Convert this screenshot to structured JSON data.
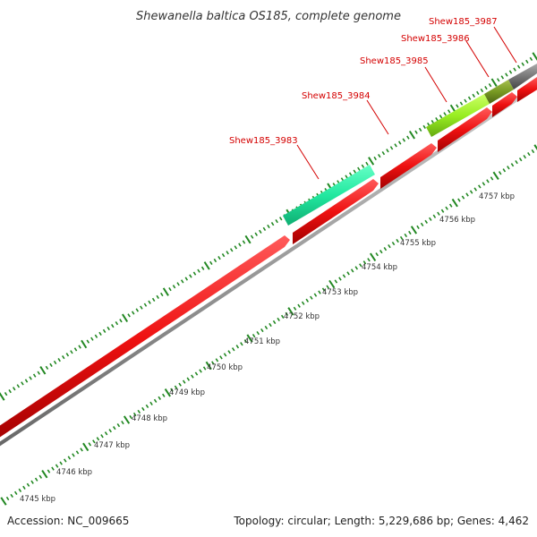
{
  "title": "Shewanella baltica OS185, complete genome",
  "footer": {
    "accession": "Accession: NC_009665",
    "summary": "Topology: circular; Length: 5,229,686 bp; Genes: 4,462"
  },
  "colors": {
    "cds": "#ee1111",
    "backbone": "#888888",
    "tick": "#228822",
    "label": "#d40000",
    "gene_3983": "#22e8a0",
    "gene_3985": "#99ee22",
    "gene_3986": "#779922",
    "gene_3987": "#777777"
  },
  "scale": {
    "unit": "kbp",
    "tick_labels": [
      "4745 kbp",
      "4746 kbp",
      "4747 kbp",
      "4748 kbp",
      "4749 kbp",
      "4750 kbp",
      "4751 kbp",
      "4752 kbp",
      "4753 kbp",
      "4754 kbp",
      "4755 kbp",
      "4756 kbp",
      "4757 kbp"
    ]
  },
  "genes": [
    {
      "label": "Shew185_3983"
    },
    {
      "label": "Shew185_3984"
    },
    {
      "label": "Shew185_3985"
    },
    {
      "label": "Shew185_3986"
    },
    {
      "label": "Shew185_3987"
    }
  ]
}
